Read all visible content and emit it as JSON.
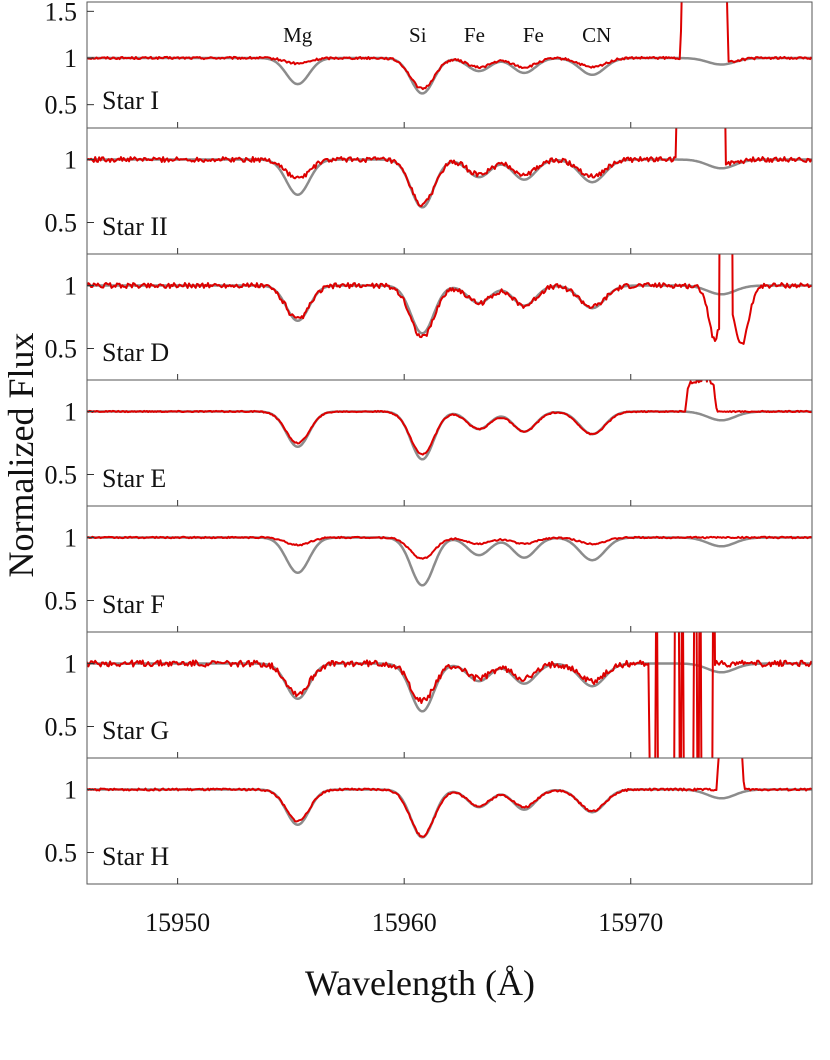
{
  "chart_data": {
    "type": "line",
    "title": "",
    "xlabel": "Wavelength (Å)",
    "ylabel": "Normalized Flux",
    "xlim": [
      15946,
      15978
    ],
    "ylim": [
      0.25,
      1.25
    ],
    "xticks": [
      15950,
      15960,
      15970
    ],
    "xtick_labels": [
      "15950",
      "15960",
      "15970"
    ],
    "colors": {
      "observed": "#dd0000",
      "model": "#8c8c8c"
    },
    "line_labels": [
      {
        "text": "Mg",
        "wavelength": 15955.3
      },
      {
        "text": "Si",
        "wavelength": 15960.6
      },
      {
        "text": "Fe",
        "wavelength": 15963.1
      },
      {
        "text": "Fe",
        "wavelength": 15965.7
      },
      {
        "text": "CN",
        "wavelength": 15968.5
      }
    ],
    "model_lines": [
      {
        "center": 15955.3,
        "depth": 0.28,
        "width": 0.5
      },
      {
        "center": 15960.8,
        "depth": 0.38,
        "width": 0.5
      },
      {
        "center": 15963.3,
        "depth": 0.14,
        "width": 0.5
      },
      {
        "center": 15965.3,
        "depth": 0.16,
        "width": 0.5
      },
      {
        "center": 15968.3,
        "depth": 0.18,
        "width": 0.55
      },
      {
        "center": 15974.0,
        "depth": 0.07,
        "width": 0.6
      }
    ],
    "panels": [
      {
        "label": "Star I",
        "yticks": [
          1.5,
          1,
          0.5
        ],
        "ytick_labels": [
          "1.5",
          "1",
          "0.5"
        ],
        "ylim": [
          0.25,
          1.6
        ],
        "line_depths": [
          0.06,
          0.33,
          0.1,
          0.1,
          0.1,
          0.05
        ],
        "noise": 0.012,
        "features": [
          {
            "type": "emission",
            "start": 15972.2,
            "end": 15974.3,
            "peak": 3.0
          }
        ]
      },
      {
        "label": "Star II",
        "yticks": [
          1,
          0.5
        ],
        "ytick_labels": [
          "1",
          "0.5"
        ],
        "line_depths": [
          0.15,
          0.36,
          0.12,
          0.12,
          0.13,
          0.03
        ],
        "noise": 0.02,
        "features": [
          {
            "type": "emission",
            "start": 15972.0,
            "end": 15974.2,
            "peak": 3.0
          }
        ]
      },
      {
        "label": "Star D",
        "yticks": [
          1,
          0.5
        ],
        "ytick_labels": [
          "1",
          "0.5"
        ],
        "line_depths": [
          0.27,
          0.41,
          0.14,
          0.16,
          0.17,
          0.05
        ],
        "noise": 0.02,
        "features": [
          {
            "type": "emission",
            "start": 15973.9,
            "end": 15974.5,
            "peak": 3.0
          },
          {
            "type": "absorption",
            "center": 15973.7,
            "depth": 0.38,
            "width": 0.25
          },
          {
            "type": "absorption",
            "center": 15974.9,
            "depth": 0.45,
            "width": 0.3
          }
        ]
      },
      {
        "label": "Star E",
        "yticks": [
          1,
          0.5
        ],
        "ytick_labels": [
          "1",
          "0.5"
        ],
        "line_depths": [
          0.25,
          0.34,
          0.14,
          0.16,
          0.18,
          0.0
        ],
        "noise": 0.005,
        "features": [
          {
            "type": "emission",
            "start": 15972.4,
            "end": 15973.8,
            "peak": 0.25
          }
        ]
      },
      {
        "label": "Star F",
        "yticks": [
          1,
          0.5
        ],
        "ytick_labels": [
          "1",
          "0.5"
        ],
        "line_depths": [
          0.06,
          0.17,
          0.05,
          0.05,
          0.05,
          0.0
        ],
        "noise": 0.006,
        "features": []
      },
      {
        "label": "Star G",
        "yticks": [
          1,
          0.5
        ],
        "ytick_labels": [
          "1",
          "0.5"
        ],
        "line_depths": [
          0.24,
          0.3,
          0.12,
          0.12,
          0.14,
          0.0
        ],
        "noise": 0.025,
        "features": [
          {
            "type": "trough",
            "start": 15970.8,
            "end": 15973.7,
            "depth": 0.85
          }
        ]
      },
      {
        "label": "Star H",
        "yticks": [
          1,
          0.5
        ],
        "ytick_labels": [
          "1",
          "0.5"
        ],
        "line_depths": [
          0.25,
          0.37,
          0.13,
          0.14,
          0.17,
          0.0
        ],
        "noise": 0.008,
        "features": [
          {
            "type": "emission",
            "start": 15973.8,
            "end": 15975.0,
            "peak": 0.45
          }
        ]
      }
    ]
  }
}
